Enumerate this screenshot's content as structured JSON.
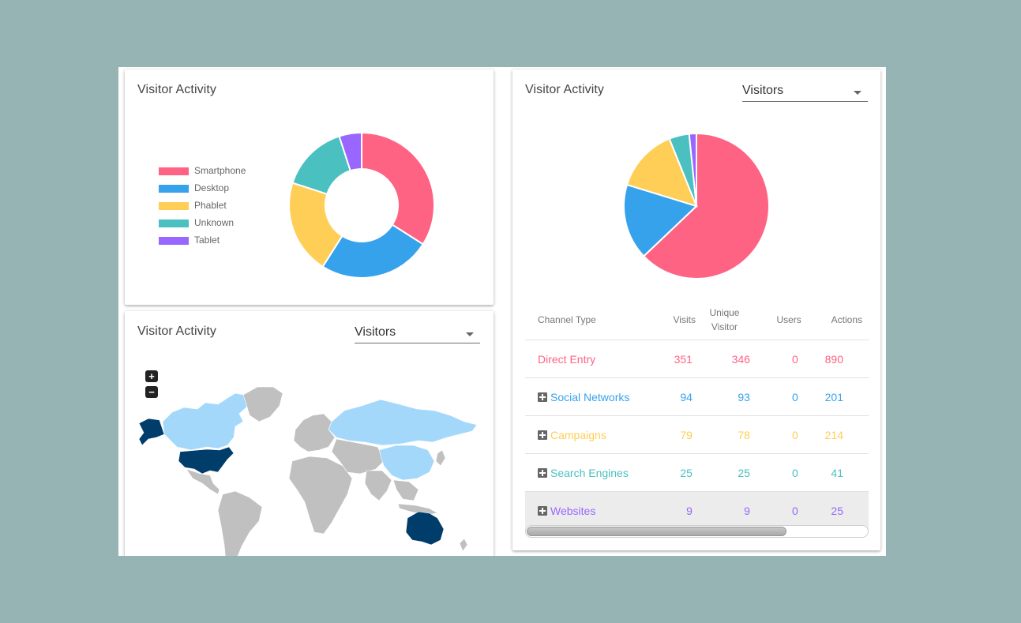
{
  "card1": {
    "title": "Visitor Activity",
    "legend": [
      {
        "label": "Smartphone",
        "color": "#ff6384"
      },
      {
        "label": "Desktop",
        "color": "#36a2eb"
      },
      {
        "label": "Phablet",
        "color": "#ffce56"
      },
      {
        "label": "Unknown",
        "color": "#4bc0c0"
      },
      {
        "label": "Tablet",
        "color": "#9966ff"
      }
    ]
  },
  "card2": {
    "title": "Visitor Activity",
    "select_value": "Visitors",
    "zoom_in": "+",
    "zoom_out": "−",
    "highlight_color": "#003d6b",
    "visitor_color": "#a4d8fb",
    "other_color": "#c0c0c0"
  },
  "card3": {
    "title": "Visitor Activity",
    "select_value": "Visitors",
    "table": {
      "headers": [
        "Channel Type",
        "Visits",
        "Unique\nVisitor",
        "Users",
        "Actions"
      ],
      "rows": [
        {
          "name": "Direct Entry",
          "expandable": false,
          "visits": "351",
          "unique": "346",
          "users": "0",
          "actions": "890",
          "color": "#ff6384"
        },
        {
          "name": "Social Networks",
          "expandable": true,
          "visits": "94",
          "unique": "93",
          "users": "0",
          "actions": "201",
          "color": "#36a2eb"
        },
        {
          "name": "Campaigns",
          "expandable": true,
          "visits": "79",
          "unique": "78",
          "users": "0",
          "actions": "214",
          "color": "#ffce56"
        },
        {
          "name": "Search Engines",
          "expandable": true,
          "visits": "25",
          "unique": "25",
          "users": "0",
          "actions": "41",
          "color": "#4bc0c0"
        },
        {
          "name": "Websites",
          "expandable": true,
          "visits": "9",
          "unique": "9",
          "users": "0",
          "actions": "25",
          "color": "#9966ff"
        }
      ]
    },
    "scroll_position": 0.76
  },
  "chart_data": [
    {
      "type": "pie",
      "variant": "doughnut",
      "title": "",
      "legend_position": "left",
      "categories": [
        "Smartphone",
        "Desktop",
        "Phablet",
        "Unknown",
        "Tablet"
      ],
      "values": [
        34,
        25,
        21,
        15,
        5
      ],
      "colors": [
        "#ff6384",
        "#36a2eb",
        "#ffce56",
        "#4bc0c0",
        "#9966ff"
      ]
    },
    {
      "type": "pie",
      "title": "",
      "categories": [
        "Direct Entry",
        "Social Networks",
        "Campaigns",
        "Search Engines",
        "Websites"
      ],
      "values": [
        351,
        94,
        79,
        25,
        9
      ],
      "colors": [
        "#ff6384",
        "#36a2eb",
        "#ffce56",
        "#4bc0c0",
        "#9966ff"
      ]
    }
  ]
}
